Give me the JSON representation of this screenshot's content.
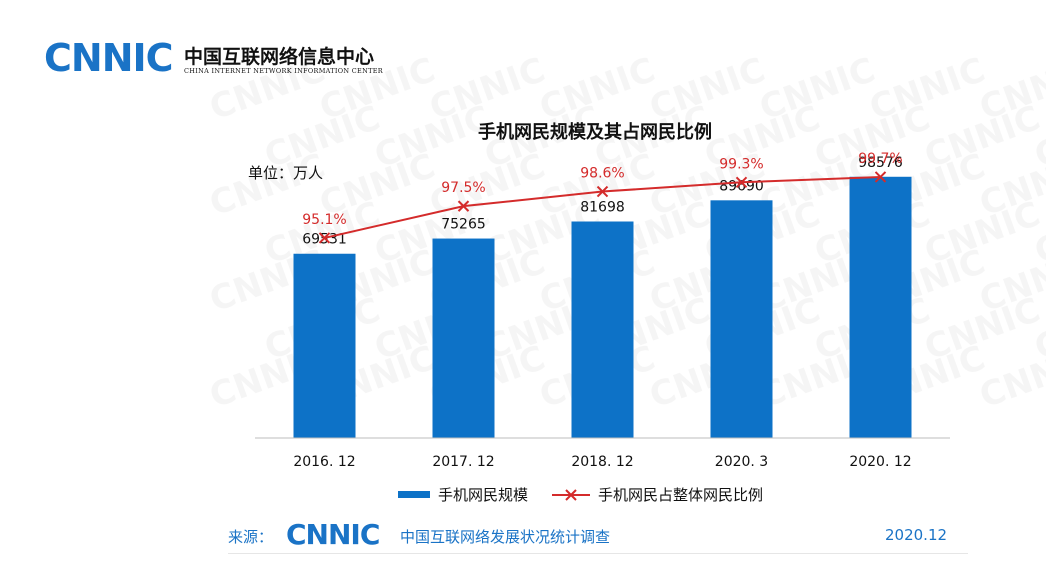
{
  "header": {
    "logo_mark": "CNNIC",
    "org_name_cn": "中国互联网络信息中心",
    "org_name_en": "CHINA INTERNET NETWORK INFORMATION CENTER"
  },
  "chart_data": {
    "type": "bar",
    "title": "手机网民规模及其占网民比例",
    "unit_label": "单位：万人",
    "categories": [
      "2016. 12",
      "2017. 12",
      "2018. 12",
      "2020. 3",
      "2020. 12"
    ],
    "series": [
      {
        "name": "手机网民规模",
        "type": "bar",
        "color": "#0d72c7",
        "values": [
          69531,
          75265,
          81698,
          89690,
          98576
        ],
        "labels": [
          "69531",
          "75265",
          "81698",
          "89690",
          "98576"
        ]
      },
      {
        "name": "手机网民占整体网民比例",
        "type": "line",
        "marker": "x",
        "color": "#d42b2b",
        "values": [
          95.1,
          97.5,
          98.6,
          99.3,
          99.7
        ],
        "labels": [
          "95.1%",
          "97.5%",
          "98.6%",
          "99.3%",
          "99.7%"
        ]
      }
    ],
    "ylim": [
      0,
      120000
    ],
    "ylim_secondary": [
      80,
      104
    ],
    "legend_position": "bottom",
    "grid": false,
    "watermark": "CNNIC"
  },
  "footer": {
    "source_label": "来源：",
    "source_logo": "CNNIC",
    "source_title": "中国互联网络发展状况统计调查",
    "date": "2020.12"
  }
}
